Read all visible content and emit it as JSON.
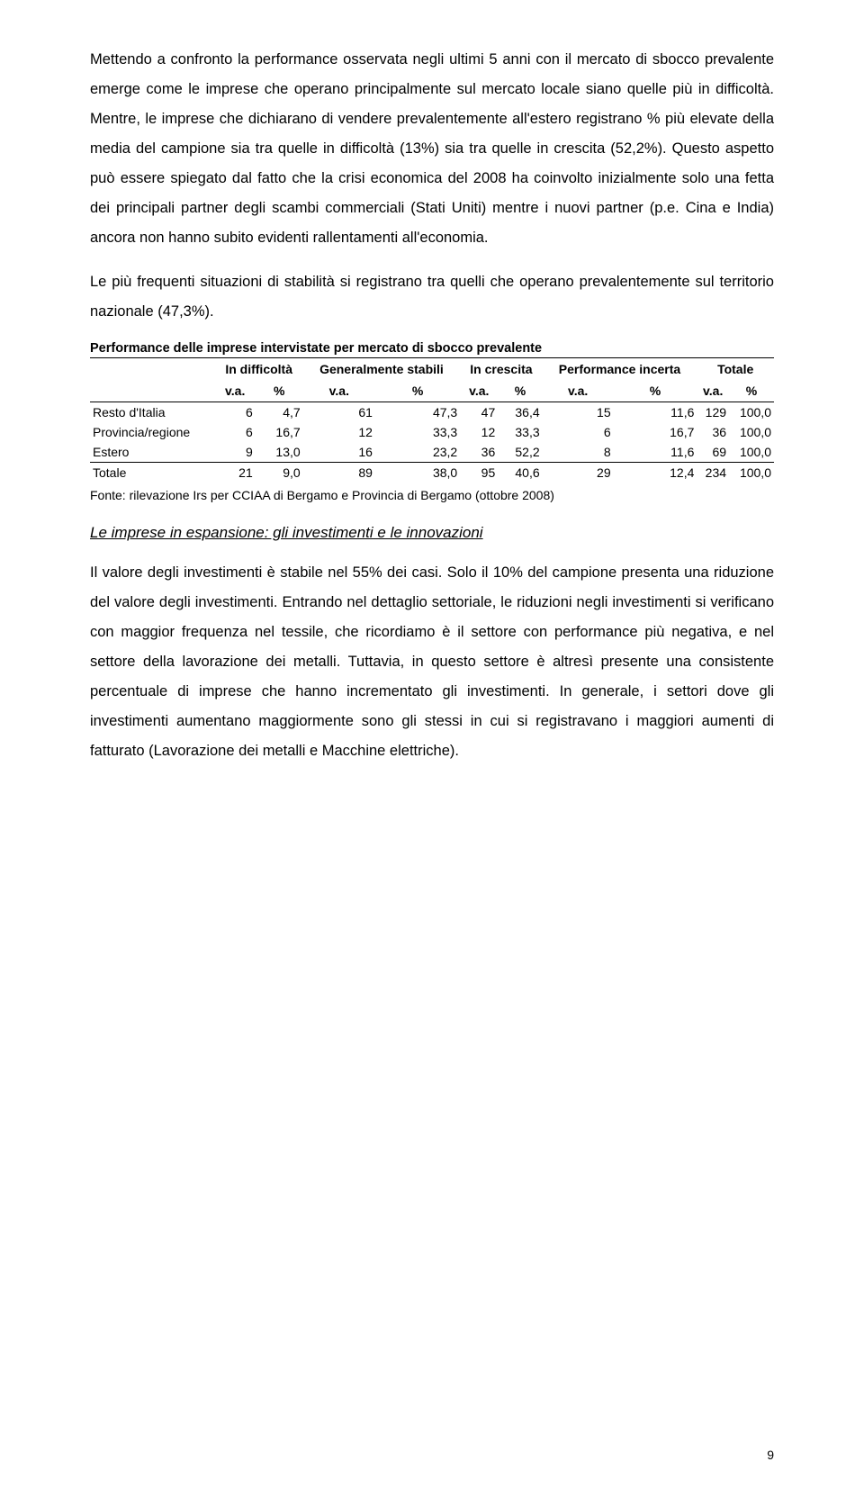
{
  "paragraphs": {
    "p1": "Mettendo a confronto la performance osservata negli ultimi 5 anni con il mercato di sbocco prevalente emerge come le imprese che operano principalmente sul mercato locale siano quelle più in difficoltà. Mentre, le imprese che dichiarano di vendere prevalentemente all'estero registrano % più elevate della media del campione sia tra quelle in difficoltà (13%) sia tra quelle in crescita (52,2%). Questo aspetto può essere spiegato dal fatto che la crisi economica del 2008 ha coinvolto inizialmente solo una fetta dei principali partner degli scambi commerciali (Stati Uniti) mentre i nuovi partner (p.e. Cina e India) ancora non hanno subito evidenti rallentamenti all'economia.",
    "p2": "Le più frequenti situazioni di stabilità si registrano tra quelli che operano prevalentemente sul territorio nazionale (47,3%).",
    "p3": "Il valore degli investimenti è stabile nel 55% dei casi. Solo il 10% del campione presenta una riduzione del valore degli investimenti. Entrando nel dettaglio settoriale, le riduzioni negli investimenti si verificano con maggior frequenza nel tessile, che ricordiamo è il settore con performance più negativa, e nel settore della lavorazione dei metalli. Tuttavia, in questo settore è altresì presente una consistente percentuale di imprese che hanno incrementato gli investimenti. In generale, i settori dove gli investimenti aumentano maggiormente sono gli stessi in cui si registravano i maggiori aumenti di fatturato (Lavorazione dei metalli e Macchine elettriche)."
  },
  "table": {
    "title": "Performance delle imprese intervistate per mercato di sbocco prevalente",
    "col_groups": [
      "In difficoltà",
      "Generalmente stabili",
      "In crescita",
      "Performance incerta",
      "Totale"
    ],
    "sub_headers": [
      "v.a.",
      "%"
    ],
    "rows": [
      {
        "label": "Resto d'Italia",
        "cells": [
          "6",
          "4,7",
          "61",
          "47,3",
          "47",
          "36,4",
          "15",
          "11,6",
          "129",
          "100,0"
        ]
      },
      {
        "label": "Provincia/regione",
        "cells": [
          "6",
          "16,7",
          "12",
          "33,3",
          "12",
          "33,3",
          "6",
          "16,7",
          "36",
          "100,0"
        ]
      },
      {
        "label": "Estero",
        "cells": [
          "9",
          "13,0",
          "16",
          "23,2",
          "36",
          "52,2",
          "8",
          "11,6",
          "69",
          "100,0"
        ]
      },
      {
        "label": "Totale",
        "cells": [
          "21",
          "9,0",
          "89",
          "38,0",
          "95",
          "40,6",
          "29",
          "12,4",
          "234",
          "100,0"
        ]
      }
    ]
  },
  "source": "Fonte: rilevazione Irs per CCIAA di Bergamo e Provincia di Bergamo (ottobre 2008)",
  "section_heading": "Le imprese in espansione: gli investimenti e le innovazioni",
  "page_number": "9"
}
